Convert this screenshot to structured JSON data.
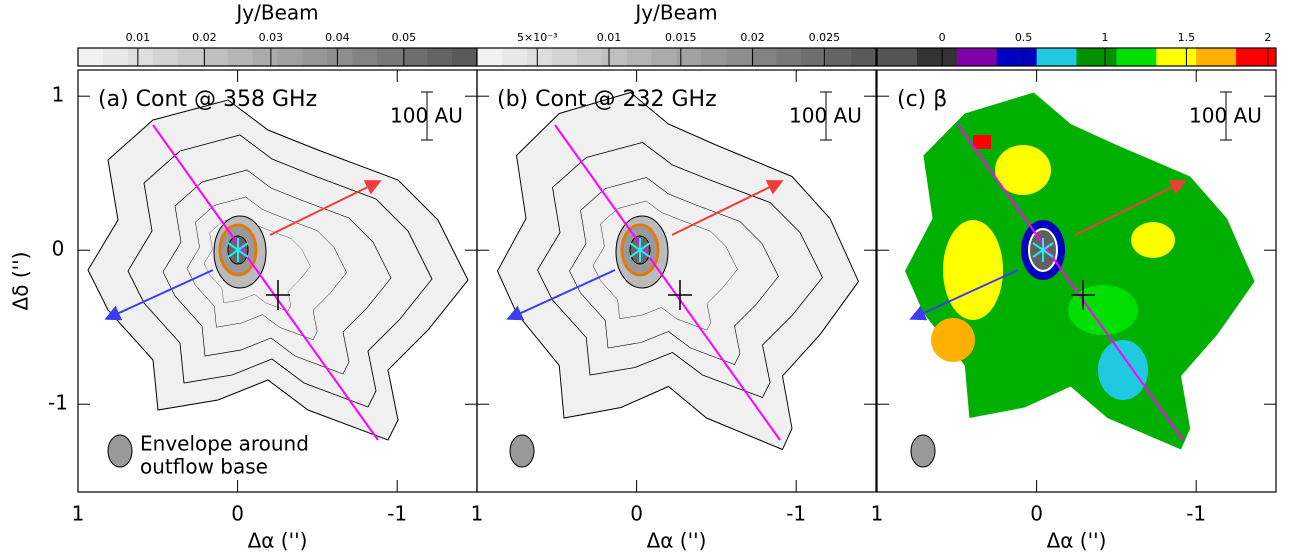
{
  "chart_data": [
    {
      "type": "map",
      "title": "(a) Cont @ 358 GHz",
      "xlabel": "Δα ('')",
      "ylabel": "Δδ ('')",
      "xlim": [
        1,
        -1.5
      ],
      "xticks": [
        1,
        0,
        -1
      ],
      "ylim": [
        -1.57,
        1.17
      ],
      "yticks": [
        -1,
        0,
        1
      ],
      "scale_bar": "100 AU",
      "annotation": [
        "Envelope around",
        "outflow base"
      ],
      "colorbar": {
        "label": "Jy/Beam",
        "lim": [
          0.001,
          0.061
        ],
        "ticks": [
          0.01,
          0.02,
          0.03,
          0.04,
          0.05
        ],
        "colors": [
          "#f2f2f2",
          "#5a5a5a"
        ]
      }
    },
    {
      "type": "map",
      "title": "(b) Cont @ 232 GHz",
      "xlabel": "Δα ('')",
      "xlim": [
        1,
        -1.5
      ],
      "xticks": [
        1,
        0,
        -1
      ],
      "scale_bar": "100 AU",
      "colorbar": {
        "label": "Jy/Beam",
        "lim": [
          0.0008,
          0.0286
        ],
        "ticks": [
          {
            "value": 0.005,
            "label": "5×10⁻³"
          },
          0.01,
          0.015,
          0.02,
          0.025
        ],
        "colors": [
          "#f2f2f2",
          "#5a5a5a"
        ]
      }
    },
    {
      "type": "map",
      "title": "(c) β",
      "xlabel": "Δα ('')",
      "xlim": [
        1,
        -1.5
      ],
      "xticks": [
        1,
        0,
        -1
      ],
      "scale_bar": "100 AU",
      "colorbar": {
        "lim": [
          -0.4,
          2.05
        ],
        "ticks": [
          0,
          0.5,
          1,
          1.5,
          2
        ],
        "colors": [
          "#555555",
          "#333333",
          "#8000a8",
          "#0000c0",
          "#20c8e0",
          "#009000",
          "#00e000",
          "#ffff00",
          "#ffb000",
          "#ff0000"
        ]
      }
    }
  ]
}
